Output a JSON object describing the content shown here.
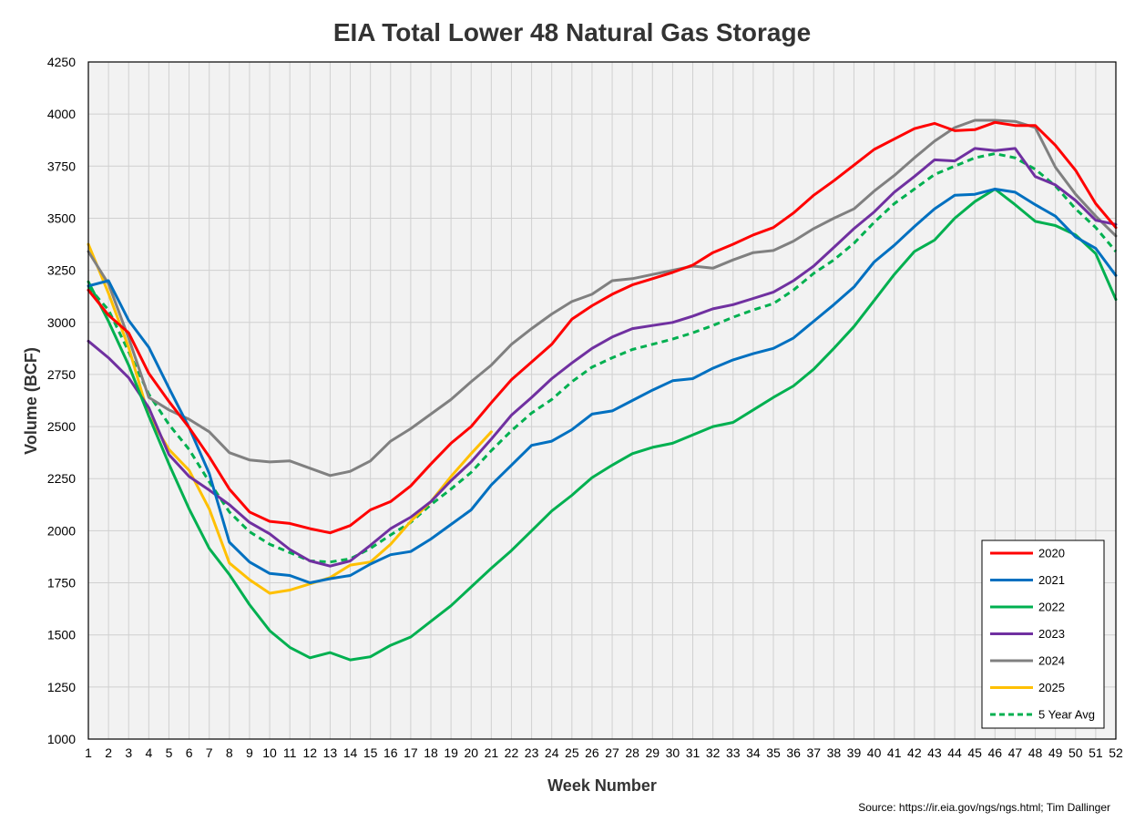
{
  "chart_data": {
    "type": "line",
    "title": "EIA Total Lower 48 Natural Gas Storage",
    "xlabel": "Week Number",
    "ylabel": "Volume (BCF)",
    "source": "Source: https://ir.eia.gov/ngs/ngs.html; Tim Dallinger",
    "xlim": [
      1,
      52
    ],
    "ylim": [
      1000,
      4250
    ],
    "yticks": [
      1000,
      1250,
      1500,
      1750,
      2000,
      2250,
      2500,
      2750,
      3000,
      3250,
      3500,
      3750,
      4000,
      4250
    ],
    "xticks": [
      1,
      2,
      3,
      4,
      5,
      6,
      7,
      8,
      9,
      10,
      11,
      12,
      13,
      14,
      15,
      16,
      17,
      18,
      19,
      20,
      21,
      22,
      23,
      24,
      25,
      26,
      27,
      28,
      29,
      30,
      31,
      32,
      33,
      34,
      35,
      36,
      37,
      38,
      39,
      40,
      41,
      42,
      43,
      44,
      45,
      46,
      47,
      48,
      49,
      50,
      51,
      52
    ],
    "grid": true,
    "legend_position": "bottom-right",
    "series": [
      {
        "name": "2020",
        "color": "#ff0000",
        "dash": false,
        "values": [
          3155,
          3035,
          2950,
          2755,
          2620,
          2495,
          2355,
          2200,
          2090,
          2045,
          2035,
          2010,
          1990,
          2025,
          2100,
          2140,
          2215,
          2320,
          2420,
          2500,
          2615,
          2725,
          2810,
          2895,
          3015,
          3080,
          3135,
          3180,
          3210,
          3240,
          3275,
          3335,
          3375,
          3420,
          3455,
          3525,
          3610,
          3680,
          3755,
          3830,
          3880,
          3930,
          3955,
          3920,
          3925,
          3960,
          3945,
          3945,
          3850,
          3730,
          3570,
          3455
        ]
      },
      {
        "name": "2021",
        "color": "#0070c0",
        "dash": false,
        "values": [
          3175,
          3200,
          3010,
          2880,
          2685,
          2495,
          2275,
          1945,
          1850,
          1795,
          1785,
          1750,
          1770,
          1785,
          1840,
          1885,
          1900,
          1960,
          2030,
          2100,
          2220,
          2315,
          2410,
          2430,
          2485,
          2560,
          2575,
          2625,
          2675,
          2720,
          2730,
          2780,
          2820,
          2850,
          2875,
          2925,
          3005,
          3085,
          3170,
          3290,
          3370,
          3460,
          3545,
          3610,
          3615,
          3640,
          3625,
          3565,
          3510,
          3410,
          3355,
          3225
        ]
      },
      {
        "name": "2022",
        "color": "#00b050",
        "dash": false,
        "values": [
          3195,
          3005,
          2795,
          2550,
          2320,
          2105,
          1915,
          1790,
          1645,
          1520,
          1440,
          1390,
          1415,
          1380,
          1395,
          1450,
          1490,
          1565,
          1640,
          1730,
          1820,
          1905,
          2000,
          2095,
          2170,
          2255,
          2315,
          2370,
          2400,
          2420,
          2460,
          2500,
          2520,
          2580,
          2640,
          2695,
          2775,
          2875,
          2980,
          3105,
          3230,
          3340,
          3395,
          3500,
          3580,
          3640,
          3565,
          3485,
          3465,
          3420,
          3330,
          3110
        ]
      },
      {
        "name": "2023",
        "color": "#7030a0",
        "dash": false,
        "values": [
          2910,
          2830,
          2735,
          2590,
          2365,
          2260,
          2195,
          2125,
          2040,
          1985,
          1910,
          1855,
          1830,
          1855,
          1930,
          2010,
          2065,
          2140,
          2240,
          2330,
          2440,
          2555,
          2640,
          2730,
          2805,
          2875,
          2930,
          2970,
          2985,
          3000,
          3030,
          3065,
          3085,
          3115,
          3145,
          3200,
          3270,
          3360,
          3450,
          3530,
          3625,
          3700,
          3780,
          3775,
          3835,
          3825,
          3835,
          3700,
          3660,
          3585,
          3490,
          3470
        ]
      },
      {
        "name": "2024",
        "color": "#808080",
        "dash": false,
        "values": [
          3340,
          3185,
          2925,
          2640,
          2580,
          2535,
          2475,
          2375,
          2340,
          2330,
          2335,
          2300,
          2265,
          2285,
          2335,
          2430,
          2490,
          2560,
          2630,
          2715,
          2795,
          2895,
          2970,
          3040,
          3100,
          3135,
          3200,
          3210,
          3230,
          3250,
          3270,
          3260,
          3300,
          3335,
          3345,
          3390,
          3450,
          3500,
          3545,
          3630,
          3705,
          3790,
          3870,
          3935,
          3970,
          3970,
          3965,
          3935,
          3745,
          3615,
          3510,
          3415
        ]
      },
      {
        "name": "2025",
        "color": "#ffc000",
        "dash": false,
        "values": [
          3375,
          3140,
          2880,
          2550,
          2390,
          2290,
          2105,
          1845,
          1765,
          1700,
          1715,
          1745,
          1775,
          1835,
          1850,
          1935,
          2045,
          2140,
          2260,
          2370,
          2475
        ]
      },
      {
        "name": "5 Year Avg",
        "color": "#00b050",
        "dash": true,
        "values": [
          3170,
          3060,
          2860,
          2655,
          2510,
          2390,
          2235,
          2090,
          1995,
          1935,
          1895,
          1855,
          1850,
          1865,
          1915,
          1980,
          2040,
          2125,
          2200,
          2280,
          2385,
          2480,
          2565,
          2630,
          2715,
          2785,
          2830,
          2870,
          2895,
          2920,
          2950,
          2985,
          3025,
          3060,
          3090,
          3155,
          3235,
          3300,
          3380,
          3480,
          3570,
          3640,
          3710,
          3750,
          3790,
          3810,
          3790,
          3735,
          3655,
          3545,
          3455,
          3340
        ]
      }
    ]
  }
}
